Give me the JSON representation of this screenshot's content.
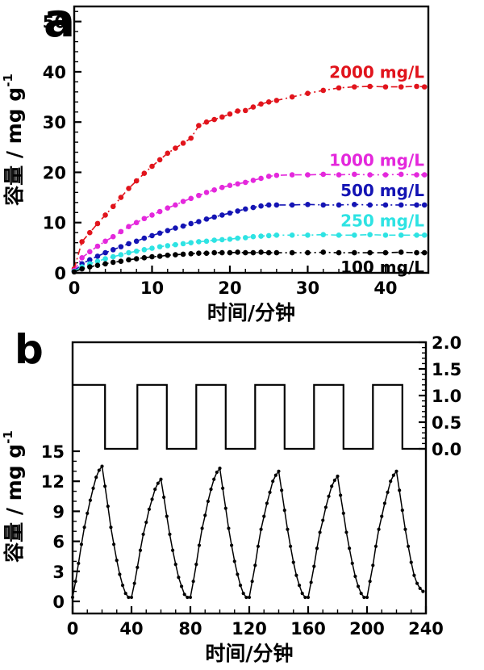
{
  "figure": {
    "background": "#ffffff"
  },
  "panels": {
    "a": {
      "letter": "a"
    },
    "b": {
      "letter": "b"
    }
  },
  "chart_data": [
    {
      "id": "panel-a",
      "type": "line",
      "title": "",
      "xlabel": "时间/分钟",
      "ylabel_main": "容量 / mg g",
      "ylabel_sup": "-1",
      "xlim": [
        0,
        45.5
      ],
      "ylim": [
        0,
        53
      ],
      "xticks": [
        0,
        10,
        20,
        30,
        40
      ],
      "yticks": [
        0,
        10,
        20,
        30,
        40,
        50
      ],
      "minor_x_step": 2,
      "minor_y_step": 2,
      "grid": false,
      "legend_position": "labels-at-line-ends",
      "x": [
        0,
        1,
        2,
        3,
        4,
        5,
        6,
        7,
        8,
        9,
        10,
        11,
        12,
        13,
        14,
        15,
        16,
        17,
        18,
        19,
        20,
        21,
        22,
        23,
        24,
        25,
        26,
        28,
        30,
        32,
        34,
        36,
        38,
        40,
        42,
        44,
        45
      ],
      "series": [
        {
          "name": "2000 mg/L",
          "color": "#e1141c",
          "values": [
            0.8,
            6.2,
            8.0,
            9.8,
            11.5,
            13.2,
            15.0,
            16.8,
            18.3,
            19.8,
            21.2,
            22.5,
            23.8,
            24.8,
            25.8,
            26.8,
            29.3,
            30.0,
            30.5,
            31.0,
            31.6,
            32.2,
            32.3,
            33.0,
            33.6,
            34.0,
            34.3,
            35.0,
            35.7,
            36.3,
            36.8,
            37.0,
            37.1,
            37.0,
            37.0,
            37.1,
            37.0
          ]
        },
        {
          "name": "1000 mg/L",
          "color": "#e428dc",
          "values": [
            0.5,
            3.0,
            4.2,
            5.3,
            6.3,
            7.2,
            8.2,
            9.2,
            10.0,
            10.8,
            11.5,
            12.2,
            12.9,
            13.5,
            14.2,
            14.8,
            15.4,
            16.0,
            16.5,
            17.0,
            17.4,
            17.7,
            18.0,
            18.4,
            18.8,
            19.2,
            19.4,
            19.5,
            19.5,
            19.6,
            19.5,
            19.6,
            19.5,
            19.5,
            19.6,
            19.5,
            19.5
          ]
        },
        {
          "name": "500 mg/L",
          "color": "#1414b4",
          "values": [
            0.3,
            1.8,
            2.6,
            3.3,
            4.0,
            4.6,
            5.2,
            5.8,
            6.3,
            6.9,
            7.4,
            7.9,
            8.4,
            8.9,
            9.3,
            9.8,
            10.2,
            10.7,
            11.1,
            11.5,
            11.9,
            12.3,
            12.7,
            13.0,
            13.3,
            13.5,
            13.5,
            13.5,
            13.6,
            13.5,
            13.5,
            13.6,
            13.5,
            13.5,
            13.5,
            13.5,
            13.5
          ]
        },
        {
          "name": "250 mg/L",
          "color": "#2ee3e3",
          "values": [
            0.3,
            1.2,
            1.8,
            2.3,
            2.8,
            3.2,
            3.6,
            4.0,
            4.3,
            4.6,
            4.9,
            5.2,
            5.4,
            5.6,
            5.8,
            6.0,
            6.2,
            6.3,
            6.5,
            6.6,
            6.7,
            6.9,
            7.0,
            7.2,
            7.3,
            7.4,
            7.5,
            7.5,
            7.5,
            7.6,
            7.5,
            7.5,
            7.6,
            7.5,
            7.5,
            7.5,
            7.5
          ]
        },
        {
          "name": "100 mg/L",
          "color": "#000000",
          "values": [
            0.2,
            0.8,
            1.2,
            1.5,
            1.8,
            2.1,
            2.3,
            2.6,
            2.8,
            3.0,
            3.2,
            3.3,
            3.5,
            3.6,
            3.7,
            3.8,
            3.9,
            3.9,
            4.0,
            4.0,
            4.0,
            4.1,
            4.0,
            4.0,
            4.1,
            4.0,
            4.0,
            4.0,
            4.0,
            4.1,
            4.0,
            4.0,
            4.0,
            4.0,
            4.1,
            4.0,
            4.0
          ]
        }
      ]
    },
    {
      "id": "panel-b",
      "type": "line",
      "title": "",
      "xlabel": "时间/分钟",
      "ylabel_main": "容量 / mg g",
      "ylabel_sup": "-1",
      "xlim": [
        0,
        240
      ],
      "left_ylim": [
        0,
        15
      ],
      "right_ylim": [
        0.0,
        2.0
      ],
      "xticks": [
        0,
        40,
        80,
        120,
        160,
        200,
        240
      ],
      "left_yticks": [
        0,
        3,
        6,
        9,
        12,
        15
      ],
      "right_ytick_labels": [
        "0.0",
        "0.5",
        "1.0",
        "1.5",
        "2.0"
      ],
      "minor_x_step": 10,
      "minor_left_step": 1,
      "minor_right_step": 0.1,
      "grid": false,
      "series": [
        {
          "name": "capacity-cycles",
          "axis": "left",
          "color": "#000000",
          "marker": true,
          "points": [
            [
              0,
              0.4
            ],
            [
              2,
              2.0
            ],
            [
              4,
              3.8
            ],
            [
              6,
              5.7
            ],
            [
              8,
              7.4
            ],
            [
              10,
              8.8
            ],
            [
              12,
              10.1
            ],
            [
              14,
              11.3
            ],
            [
              16,
              12.4
            ],
            [
              18,
              13.1
            ],
            [
              20,
              13.5
            ],
            [
              22,
              11.5
            ],
            [
              24,
              9.5
            ],
            [
              26,
              7.4
            ],
            [
              28,
              5.7
            ],
            [
              30,
              4.1
            ],
            [
              32,
              2.7
            ],
            [
              34,
              1.6
            ],
            [
              36,
              0.8
            ],
            [
              38,
              0.4
            ],
            [
              40,
              0.4
            ],
            [
              42,
              1.8
            ],
            [
              44,
              3.4
            ],
            [
              46,
              5.1
            ],
            [
              48,
              6.7
            ],
            [
              50,
              7.9
            ],
            [
              52,
              9.2
            ],
            [
              54,
              10.2
            ],
            [
              56,
              11.2
            ],
            [
              58,
              11.8
            ],
            [
              60,
              12.2
            ],
            [
              62,
              10.4
            ],
            [
              64,
              8.5
            ],
            [
              66,
              6.7
            ],
            [
              68,
              5.1
            ],
            [
              70,
              3.7
            ],
            [
              72,
              2.4
            ],
            [
              74,
              1.5
            ],
            [
              76,
              0.7
            ],
            [
              78,
              0.4
            ],
            [
              80,
              0.4
            ],
            [
              82,
              2.0
            ],
            [
              84,
              3.7
            ],
            [
              86,
              5.6
            ],
            [
              88,
              7.3
            ],
            [
              90,
              8.6
            ],
            [
              92,
              10.0
            ],
            [
              94,
              11.2
            ],
            [
              96,
              12.2
            ],
            [
              98,
              12.9
            ],
            [
              100,
              13.3
            ],
            [
              102,
              11.3
            ],
            [
              104,
              9.3
            ],
            [
              106,
              7.3
            ],
            [
              108,
              5.6
            ],
            [
              110,
              4.0
            ],
            [
              112,
              2.7
            ],
            [
              114,
              1.6
            ],
            [
              116,
              0.8
            ],
            [
              118,
              0.4
            ],
            [
              120,
              0.4
            ],
            [
              122,
              2.0
            ],
            [
              124,
              3.6
            ],
            [
              126,
              5.5
            ],
            [
              128,
              7.2
            ],
            [
              130,
              8.5
            ],
            [
              132,
              9.8
            ],
            [
              134,
              10.9
            ],
            [
              136,
              12.0
            ],
            [
              138,
              12.6
            ],
            [
              140,
              13.0
            ],
            [
              142,
              11.1
            ],
            [
              144,
              9.1
            ],
            [
              146,
              7.2
            ],
            [
              148,
              5.5
            ],
            [
              150,
              3.9
            ],
            [
              152,
              2.6
            ],
            [
              154,
              1.6
            ],
            [
              156,
              0.8
            ],
            [
              158,
              0.4
            ],
            [
              160,
              0.4
            ],
            [
              162,
              1.9
            ],
            [
              164,
              3.5
            ],
            [
              166,
              5.3
            ],
            [
              168,
              6.9
            ],
            [
              170,
              8.1
            ],
            [
              172,
              9.4
            ],
            [
              174,
              10.5
            ],
            [
              176,
              11.5
            ],
            [
              178,
              12.1
            ],
            [
              180,
              12.5
            ],
            [
              182,
              10.6
            ],
            [
              184,
              8.8
            ],
            [
              186,
              6.9
            ],
            [
              188,
              5.3
            ],
            [
              190,
              3.8
            ],
            [
              192,
              2.5
            ],
            [
              194,
              1.5
            ],
            [
              196,
              0.8
            ],
            [
              198,
              0.4
            ],
            [
              200,
              0.4
            ],
            [
              202,
              2.0
            ],
            [
              204,
              3.6
            ],
            [
              206,
              5.5
            ],
            [
              208,
              7.2
            ],
            [
              210,
              8.5
            ],
            [
              212,
              9.8
            ],
            [
              214,
              10.9
            ],
            [
              216,
              12.0
            ],
            [
              218,
              12.6
            ],
            [
              220,
              13.0
            ],
            [
              222,
              11.1
            ],
            [
              224,
              9.1
            ],
            [
              226,
              7.2
            ],
            [
              228,
              5.5
            ],
            [
              230,
              3.9
            ],
            [
              232,
              2.6
            ],
            [
              234,
              1.8
            ],
            [
              236,
              1.3
            ],
            [
              238,
              1.0
            ]
          ]
        },
        {
          "name": "regeneration-square-wave",
          "axis": "right",
          "color": "#000000",
          "marker": false,
          "points": [
            [
              0,
              1.2
            ],
            [
              22,
              1.2
            ],
            [
              22,
              0
            ],
            [
              44,
              0
            ],
            [
              44,
              1.2
            ],
            [
              64,
              1.2
            ],
            [
              64,
              0
            ],
            [
              84,
              0
            ],
            [
              84,
              1.2
            ],
            [
              104,
              1.2
            ],
            [
              104,
              0
            ],
            [
              124,
              0
            ],
            [
              124,
              1.2
            ],
            [
              144,
              1.2
            ],
            [
              144,
              0
            ],
            [
              164,
              0
            ],
            [
              164,
              1.2
            ],
            [
              184,
              1.2
            ],
            [
              184,
              0
            ],
            [
              204,
              0
            ],
            [
              204,
              1.2
            ],
            [
              224,
              1.2
            ],
            [
              224,
              0
            ],
            [
              240,
              0
            ]
          ]
        }
      ]
    }
  ]
}
